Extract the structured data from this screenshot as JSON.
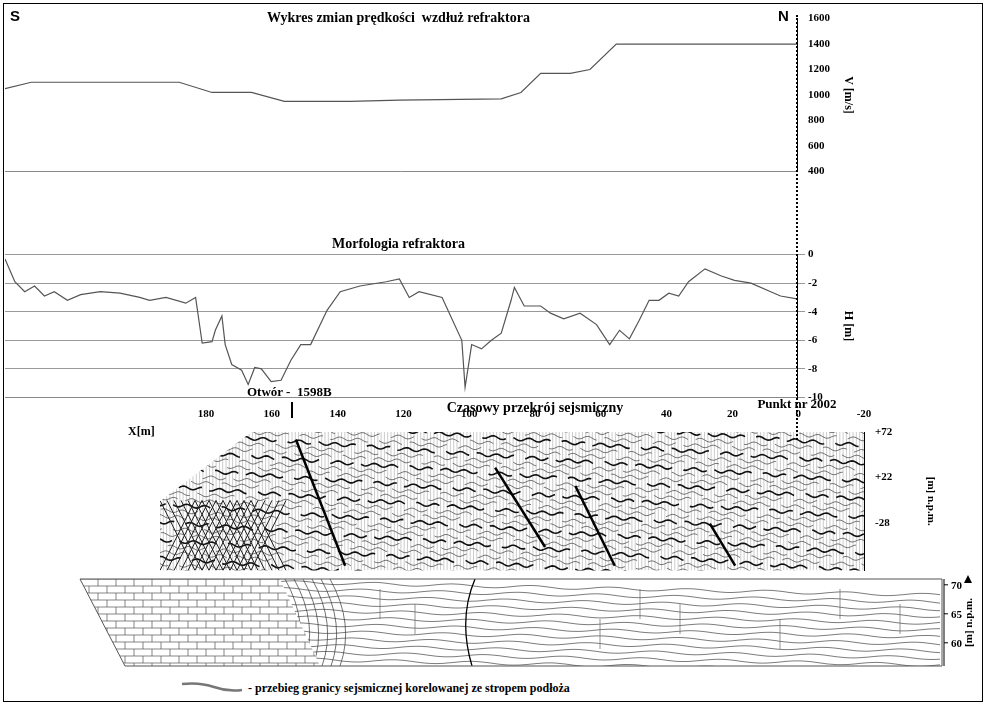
{
  "chart_data": [
    {
      "type": "line",
      "title": "Wykres zmian prędkości  wzdłuż refraktora",
      "x": [
        241,
        233,
        188,
        178,
        166,
        156,
        136,
        121,
        90,
        84,
        78,
        69,
        63,
        55,
        0
      ],
      "values": [
        1050,
        1100,
        1100,
        1020,
        1020,
        950,
        950,
        960,
        970,
        1020,
        1170,
        1170,
        1200,
        1400,
        1400
      ],
      "xlim": [
        241,
        0
      ],
      "ylim": [
        400,
        1600
      ],
      "yticks": [
        400,
        600,
        800,
        1000,
        1200,
        1400,
        1600
      ],
      "ylabel": "V [m/s]",
      "color": "#555555",
      "grid": false,
      "tick_labels": "y"
    },
    {
      "type": "line",
      "title": "Morfologia refraktora",
      "x": [
        241,
        238,
        235,
        232,
        229,
        226,
        222,
        218,
        212,
        206,
        200,
        197,
        192,
        186,
        183,
        181,
        178,
        177,
        175,
        174,
        172,
        169,
        167,
        165,
        163,
        160,
        157,
        154,
        151,
        148,
        143,
        139,
        133,
        125,
        121,
        118,
        115,
        108,
        102,
        101,
        99,
        96,
        93,
        90,
        87,
        86,
        83,
        78,
        75,
        71,
        66,
        61,
        57,
        54,
        51,
        48,
        45,
        42,
        39,
        36,
        33,
        28,
        23,
        19,
        14,
        8,
        5,
        0
      ],
      "values": [
        -0.3,
        -1.9,
        -2.6,
        -2.2,
        -2.9,
        -2.6,
        -3.2,
        -2.8,
        -2.6,
        -2.7,
        -3.0,
        -3.2,
        -3.0,
        -3.4,
        -3.0,
        -6.2,
        -6.1,
        -5.3,
        -4.3,
        -6.3,
        -7.7,
        -8.1,
        -9.1,
        -7.9,
        -8.0,
        -8.9,
        -8.8,
        -7.4,
        -6.3,
        -6.3,
        -3.9,
        -2.6,
        -2.2,
        -1.9,
        -1.7,
        -3.0,
        -2.6,
        -3.0,
        -6.0,
        -9.3,
        -6.3,
        -6.6,
        -6.0,
        -5.5,
        -3.2,
        -2.3,
        -3.6,
        -3.6,
        -4.1,
        -4.5,
        -4.1,
        -4.9,
        -6.3,
        -5.3,
        -5.9,
        -4.6,
        -3.2,
        -3.2,
        -2.7,
        -2.9,
        -1.9,
        -1.0,
        -1.5,
        -1.8,
        -2.0,
        -2.6,
        -2.9,
        -3.1
      ],
      "xlim": [
        241,
        0
      ],
      "ylim": [
        -10,
        0
      ],
      "yticks": [
        -10,
        -8,
        -6,
        -4,
        -2,
        0
      ],
      "ylabel": "H [m]",
      "color": "#555555",
      "grid": true,
      "tick_labels": "y"
    },
    {
      "type": "seismic_section",
      "title": "Czasowy przekrój sejsmiczny",
      "xlabel": "X[m]",
      "xlim": [
        194,
        -20
      ],
      "xticks": [
        180,
        160,
        140,
        120,
        100,
        80,
        60,
        40,
        20,
        0,
        -20
      ],
      "ylim": [
        -80,
        72
      ],
      "yticks": [
        -28,
        {
          "value": 22,
          "label": "+22"
        },
        {
          "value": 72,
          "label": "+72"
        }
      ],
      "ylabel": "[m] n.p.m."
    }
  ],
  "geological_section": {
    "ylabel": "[m] n.p.m.",
    "ylim": [
      56,
      71
    ],
    "yticks": [
      60,
      65,
      70
    ]
  },
  "annotations": {
    "left": "S",
    "right": "N",
    "borehole": {
      "label": "Otwór -  1598B",
      "x": 154
    },
    "point": {
      "label": "Punkt nr 2002",
      "x": 0
    }
  },
  "legend_entry": {
    "text": "- przebieg granicy sejsmicznej korelowanej ze stropem podłoża",
    "color": "#777777"
  }
}
